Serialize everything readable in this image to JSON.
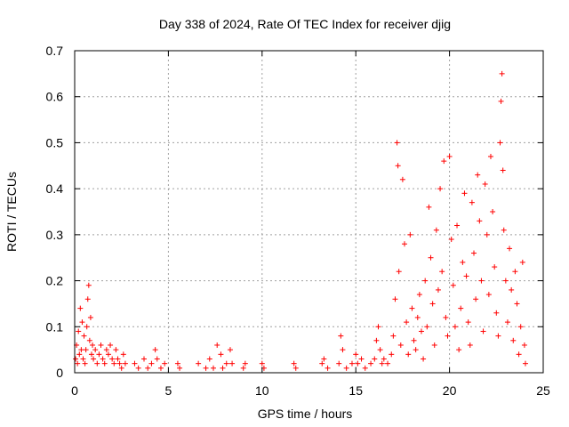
{
  "chart_data": {
    "type": "scatter",
    "title": "Day 338 of 2024, Rate Of TEC Index for receiver djig",
    "xlabel": "GPS time / hours",
    "ylabel": "ROTI / TECUs",
    "xlim": [
      0,
      25
    ],
    "ylim": [
      0,
      0.7
    ],
    "x_ticks": [
      0,
      5,
      10,
      15,
      20,
      25
    ],
    "x_tick_labels": [
      "0",
      "5",
      "10",
      "15",
      "20",
      "25"
    ],
    "y_ticks": [
      0,
      0.1,
      0.2,
      0.3,
      0.4,
      0.5,
      0.6,
      0.7
    ],
    "y_tick_labels": [
      "0",
      "0.1",
      "0.2",
      "0.3",
      "0.4",
      "0.5",
      "0.6",
      "0.7"
    ],
    "grid": true,
    "marker": "plus",
    "color": "#ff0000",
    "series": [
      {
        "points": [
          [
            0.05,
            0.03
          ],
          [
            0.1,
            0.06
          ],
          [
            0.15,
            0.02
          ],
          [
            0.2,
            0.09
          ],
          [
            0.25,
            0.04
          ],
          [
            0.3,
            0.14
          ],
          [
            0.35,
            0.05
          ],
          [
            0.4,
            0.11
          ],
          [
            0.45,
            0.03
          ],
          [
            0.5,
            0.08
          ],
          [
            0.55,
            0.02
          ],
          [
            0.6,
            0.05
          ],
          [
            0.65,
            0.1
          ],
          [
            0.7,
            0.16
          ],
          [
            0.75,
            0.19
          ],
          [
            0.8,
            0.07
          ],
          [
            0.85,
            0.12
          ],
          [
            0.9,
            0.04
          ],
          [
            0.95,
            0.06
          ],
          [
            1.0,
            0.03
          ],
          [
            1.1,
            0.05
          ],
          [
            1.2,
            0.02
          ],
          [
            1.3,
            0.04
          ],
          [
            1.4,
            0.06
          ],
          [
            1.5,
            0.03
          ],
          [
            1.6,
            0.02
          ],
          [
            1.7,
            0.05
          ],
          [
            1.8,
            0.04
          ],
          [
            1.9,
            0.06
          ],
          [
            2.0,
            0.03
          ],
          [
            2.1,
            0.02
          ],
          [
            2.2,
            0.05
          ],
          [
            2.3,
            0.03
          ],
          [
            2.4,
            0.02
          ],
          [
            2.5,
            0.01
          ],
          [
            2.6,
            0.04
          ],
          [
            2.7,
            0.02
          ],
          [
            3.2,
            0.02
          ],
          [
            3.4,
            0.01
          ],
          [
            3.7,
            0.03
          ],
          [
            3.9,
            0.01
          ],
          [
            4.1,
            0.02
          ],
          [
            4.3,
            0.05
          ],
          [
            4.4,
            0.03
          ],
          [
            4.6,
            0.01
          ],
          [
            4.8,
            0.02
          ],
          [
            5.5,
            0.02
          ],
          [
            5.6,
            0.01
          ],
          [
            6.6,
            0.02
          ],
          [
            7.0,
            0.01
          ],
          [
            7.2,
            0.03
          ],
          [
            7.4,
            0.01
          ],
          [
            7.6,
            0.06
          ],
          [
            7.8,
            0.04
          ],
          [
            7.9,
            0.01
          ],
          [
            8.1,
            0.02
          ],
          [
            8.3,
            0.05
          ],
          [
            8.4,
            0.02
          ],
          [
            9.0,
            0.01
          ],
          [
            9.1,
            0.02
          ],
          [
            10.0,
            0.02
          ],
          [
            10.1,
            0.01
          ],
          [
            11.7,
            0.02
          ],
          [
            11.8,
            0.01
          ],
          [
            13.2,
            0.02
          ],
          [
            13.3,
            0.03
          ],
          [
            13.5,
            0.01
          ],
          [
            14.1,
            0.02
          ],
          [
            14.2,
            0.08
          ],
          [
            14.3,
            0.05
          ],
          [
            14.5,
            0.01
          ],
          [
            14.8,
            0.02
          ],
          [
            15.0,
            0.04
          ],
          [
            15.1,
            0.02
          ],
          [
            15.3,
            0.03
          ],
          [
            15.5,
            0.01
          ],
          [
            15.8,
            0.02
          ],
          [
            16.0,
            0.03
          ],
          [
            16.1,
            0.07
          ],
          [
            16.2,
            0.1
          ],
          [
            16.3,
            0.05
          ],
          [
            16.4,
            0.02
          ],
          [
            16.5,
            0.03
          ],
          [
            16.7,
            0.02
          ],
          [
            16.9,
            0.04
          ],
          [
            17.0,
            0.08
          ],
          [
            17.1,
            0.16
          ],
          [
            17.2,
            0.5
          ],
          [
            17.25,
            0.45
          ],
          [
            17.3,
            0.22
          ],
          [
            17.4,
            0.06
          ],
          [
            17.5,
            0.42
          ],
          [
            17.6,
            0.28
          ],
          [
            17.7,
            0.11
          ],
          [
            17.8,
            0.04
          ],
          [
            17.9,
            0.3
          ],
          [
            18.0,
            0.14
          ],
          [
            18.1,
            0.07
          ],
          [
            18.2,
            0.05
          ],
          [
            18.3,
            0.12
          ],
          [
            18.4,
            0.17
          ],
          [
            18.5,
            0.09
          ],
          [
            18.6,
            0.03
          ],
          [
            18.7,
            0.2
          ],
          [
            18.8,
            0.1
          ],
          [
            18.9,
            0.36
          ],
          [
            19.0,
            0.25
          ],
          [
            19.1,
            0.15
          ],
          [
            19.2,
            0.06
          ],
          [
            19.3,
            0.31
          ],
          [
            19.4,
            0.18
          ],
          [
            19.5,
            0.4
          ],
          [
            19.6,
            0.22
          ],
          [
            19.7,
            0.46
          ],
          [
            19.8,
            0.12
          ],
          [
            19.9,
            0.08
          ],
          [
            20.0,
            0.47
          ],
          [
            20.1,
            0.29
          ],
          [
            20.2,
            0.19
          ],
          [
            20.3,
            0.1
          ],
          [
            20.4,
            0.32
          ],
          [
            20.5,
            0.05
          ],
          [
            20.6,
            0.14
          ],
          [
            20.7,
            0.24
          ],
          [
            20.8,
            0.39
          ],
          [
            20.9,
            0.21
          ],
          [
            21.0,
            0.11
          ],
          [
            21.1,
            0.06
          ],
          [
            21.2,
            0.37
          ],
          [
            21.3,
            0.26
          ],
          [
            21.4,
            0.16
          ],
          [
            21.5,
            0.43
          ],
          [
            21.6,
            0.33
          ],
          [
            21.7,
            0.2
          ],
          [
            21.8,
            0.09
          ],
          [
            21.9,
            0.41
          ],
          [
            22.0,
            0.3
          ],
          [
            22.1,
            0.17
          ],
          [
            22.2,
            0.47
          ],
          [
            22.3,
            0.35
          ],
          [
            22.4,
            0.23
          ],
          [
            22.5,
            0.13
          ],
          [
            22.6,
            0.08
          ],
          [
            22.7,
            0.5
          ],
          [
            22.75,
            0.59
          ],
          [
            22.8,
            0.65
          ],
          [
            22.85,
            0.44
          ],
          [
            22.9,
            0.31
          ],
          [
            23.0,
            0.2
          ],
          [
            23.1,
            0.11
          ],
          [
            23.2,
            0.27
          ],
          [
            23.3,
            0.18
          ],
          [
            23.4,
            0.07
          ],
          [
            23.5,
            0.22
          ],
          [
            23.6,
            0.15
          ],
          [
            23.7,
            0.04
          ],
          [
            23.8,
            0.1
          ],
          [
            23.9,
            0.24
          ],
          [
            24.0,
            0.06
          ],
          [
            24.05,
            0.02
          ]
        ]
      }
    ]
  }
}
